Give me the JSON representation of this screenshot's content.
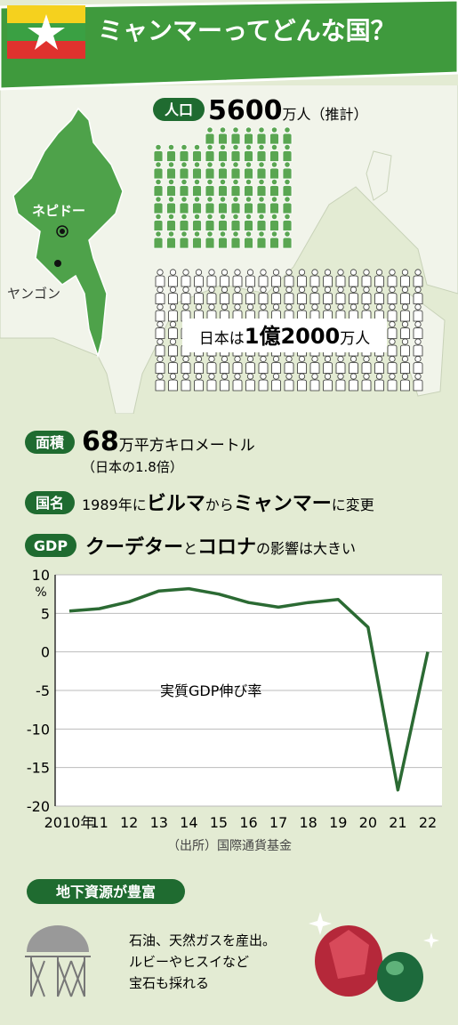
{
  "header": {
    "title": "ミャンマーってどんな国？"
  },
  "map": {
    "capital": "ネピドー",
    "city": "ヤンゴン"
  },
  "population": {
    "badge": "人口",
    "number": "5600",
    "unit": "万人（推計）",
    "japan": [
      "日本は",
      "1億",
      "2000",
      "万人"
    ]
  },
  "area": {
    "badge": "面積",
    "number": "68",
    "unit": "万平方キロメートル",
    "note": "（日本の1.8倍）"
  },
  "country_name": {
    "badge": "国名",
    "parts": [
      "1989年に",
      "ビルマ",
      "から",
      "ミャンマー",
      "に変更"
    ]
  },
  "gdp": {
    "badge": "GDP",
    "parts": [
      "クーデター",
      "と",
      "コロナ",
      "の影響は大きい"
    ]
  },
  "chart_data": {
    "type": "line",
    "y_unit": "%",
    "source": "（出所）国際通貨基金",
    "categories": [
      "2010年",
      "11",
      "12",
      "13",
      "14",
      "15",
      "16",
      "17",
      "18",
      "19",
      "20",
      "21",
      "22"
    ],
    "series": [
      {
        "name": "実質GDP伸び率",
        "color": "#2b6a33",
        "values": [
          5.3,
          5.6,
          6.5,
          7.9,
          8.2,
          7.5,
          6.4,
          5.8,
          6.4,
          6.8,
          3.2,
          -17.9,
          0
        ]
      }
    ],
    "ylim": [
      -20,
      10
    ],
    "yticks": [
      10,
      5,
      0,
      -5,
      -10,
      -15,
      -20
    ],
    "grid": true
  },
  "resources": {
    "badge": "地下資源が豊富",
    "lines": [
      "石油、天然ガスを産出。",
      "ルビーやヒスイなど",
      "宝石も採れる"
    ]
  }
}
